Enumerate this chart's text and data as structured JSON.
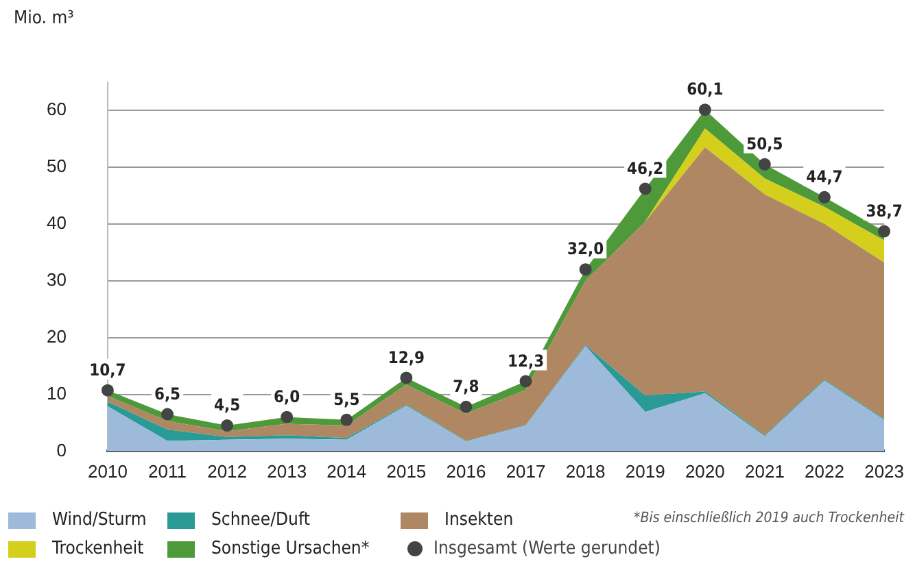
{
  "chart_data": {
    "type": "area",
    "stacked": true,
    "ylabel": "Mio. m³",
    "categories": [
      "2010",
      "2011",
      "2012",
      "2013",
      "2014",
      "2015",
      "2016",
      "2017",
      "2018",
      "2019",
      "2020",
      "2021",
      "2022",
      "2023"
    ],
    "ylim": [
      0,
      65
    ],
    "yticks": [
      0,
      10,
      20,
      30,
      40,
      50,
      60
    ],
    "grid": "y",
    "legend": "bottom",
    "series": [
      {
        "name": "Wind/Sturm",
        "color": "#9dbada",
        "values": [
          7.9,
          1.8,
          2.0,
          2.2,
          2.0,
          8.0,
          1.7,
          4.5,
          18.5,
          6.9,
          10.2,
          2.6,
          12.4,
          5.5
        ]
      },
      {
        "name": "Schnee/Duft",
        "color": "#2a9a96",
        "values": [
          0.8,
          2.0,
          0.5,
          0.6,
          0.3,
          0.2,
          0.1,
          0.1,
          0.2,
          2.9,
          0.3,
          0.2,
          0.2,
          0.2
        ]
      },
      {
        "name": "Insekten",
        "color": "#b08763",
        "values": [
          1.0,
          1.5,
          1.0,
          2.0,
          2.2,
          3.5,
          4.8,
          6.2,
          11.3,
          30.6,
          43.0,
          42.4,
          27.4,
          27.5
        ]
      },
      {
        "name": "Trockenheit",
        "color": "#d4cf1c",
        "values": [
          0,
          0,
          0,
          0,
          0,
          0,
          0,
          0,
          0,
          0,
          3.3,
          2.8,
          3.0,
          3.9
        ]
      },
      {
        "name": "Sonstige Ursachen*",
        "color": "#4e9a3a",
        "values": [
          1.0,
          1.2,
          1.0,
          1.2,
          1.0,
          1.2,
          1.2,
          1.5,
          2.0,
          5.8,
          3.3,
          2.5,
          1.7,
          1.6
        ]
      },
      {
        "name": "Insgesamt (Werte gerundet)",
        "type": "scatter",
        "marker": "circle",
        "color": "#444444",
        "values": [
          10.7,
          6.5,
          4.5,
          6.0,
          5.5,
          12.9,
          7.8,
          12.3,
          32.0,
          46.2,
          60.1,
          50.5,
          44.7,
          38.7
        ],
        "value_labels": [
          "10,7",
          "6,5",
          "4,5",
          "6,0",
          "5,5",
          "12,9",
          "7,8",
          "12,3",
          "32,0",
          "46,2",
          "60,1",
          "50,5",
          "44,7",
          "38,7"
        ]
      }
    ],
    "annotations": [
      "*Bis einschließlich 2019 auch Trockenheit"
    ]
  }
}
